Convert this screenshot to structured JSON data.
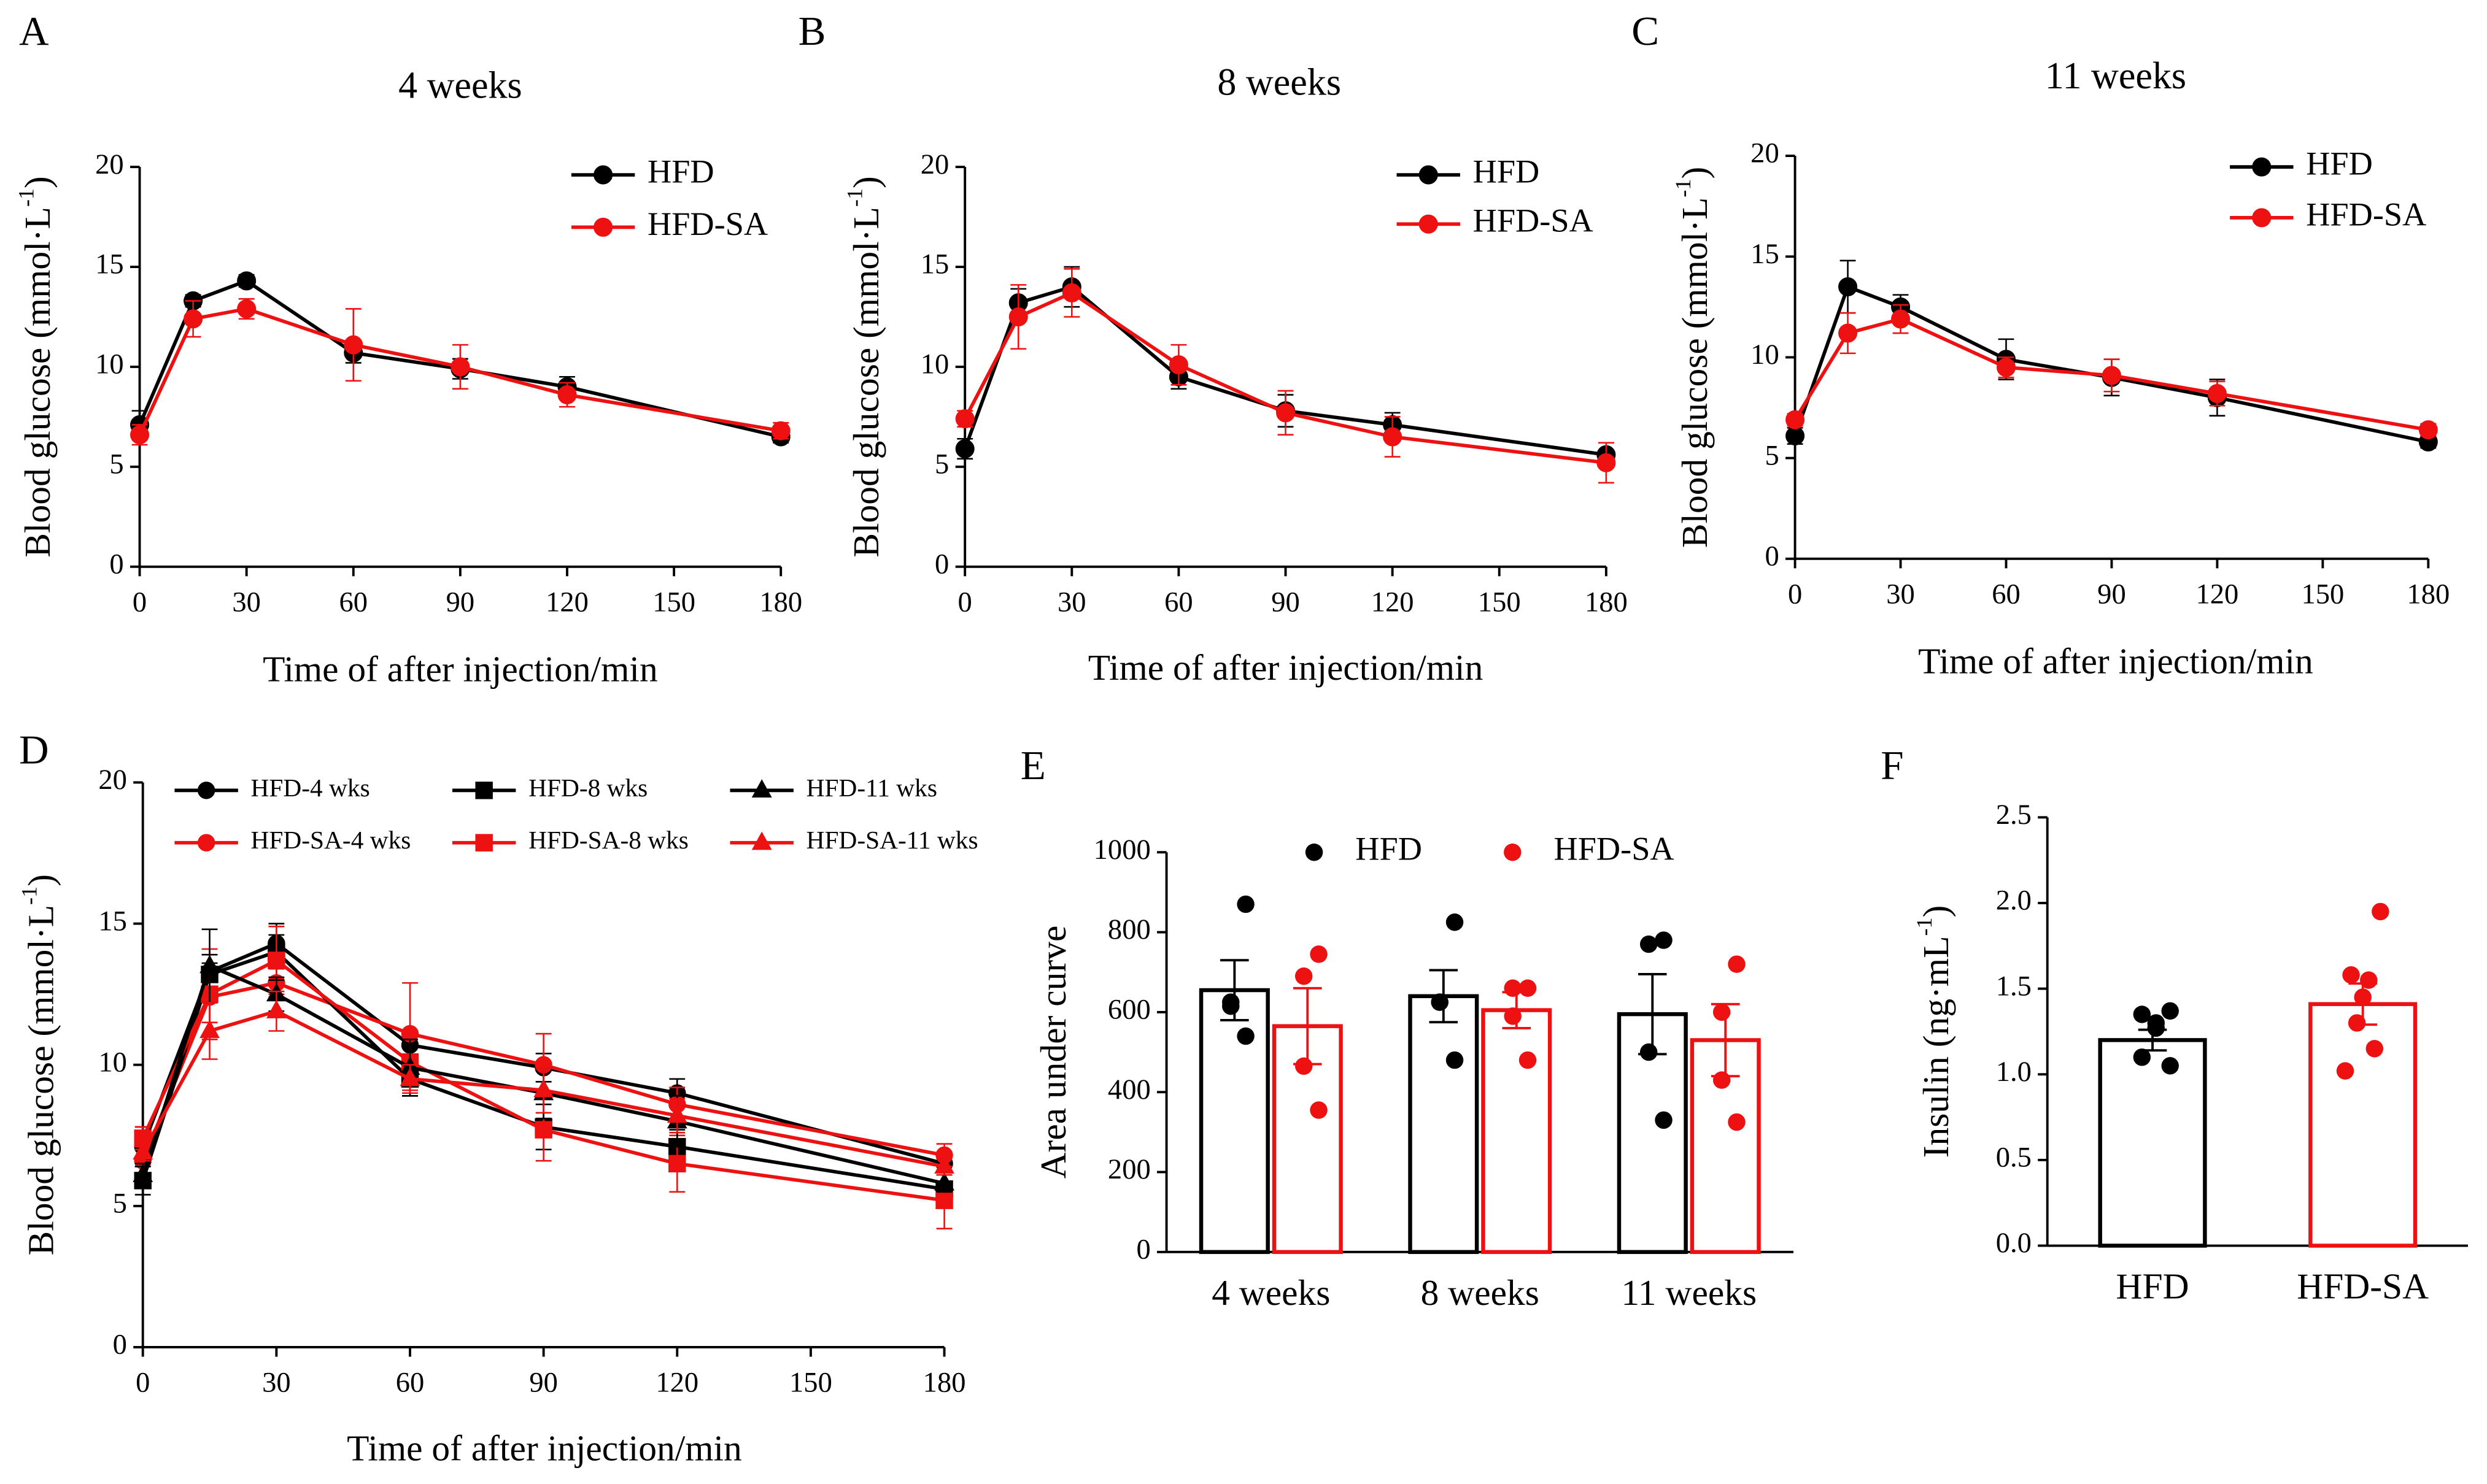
{
  "chart_data": [
    {
      "type": "line",
      "panel": "A",
      "title": "4 weeks",
      "xlabel": "Time of after injection/min",
      "ylabel": "Blood glucose (mmol·L",
      "ylabel_sup": "-1",
      "ylabel_end": ")",
      "x": [
        0,
        15,
        30,
        60,
        90,
        120,
        180
      ],
      "xlim": [
        0,
        180
      ],
      "xticks": [
        0,
        30,
        60,
        90,
        120,
        150,
        180
      ],
      "ylim": [
        0,
        20
      ],
      "yticks": [
        0,
        5,
        10,
        15,
        20
      ],
      "series": [
        {
          "name": "HFD",
          "color": "#000000",
          "marker": "circle",
          "values": [
            7.1,
            13.3,
            14.3,
            10.7,
            9.9,
            9.0,
            6.5
          ],
          "errors": [
            0.7,
            0.3,
            0.3,
            0.5,
            0.5,
            0.5,
            0.3
          ]
        },
        {
          "name": "HFD-SA",
          "color": "#ee1111",
          "marker": "circle",
          "values": [
            6.6,
            12.4,
            12.9,
            11.1,
            10.0,
            8.6,
            6.8
          ],
          "errors": [
            0.5,
            0.9,
            0.5,
            1.8,
            1.1,
            0.6,
            0.4
          ]
        }
      ]
    },
    {
      "type": "line",
      "panel": "B",
      "title": "8 weeks",
      "xlabel": "Time of after injection/min",
      "ylabel": "Blood glucose (mmol·L",
      "ylabel_sup": "-1",
      "ylabel_end": ")",
      "x": [
        0,
        15,
        30,
        60,
        90,
        120,
        180
      ],
      "xlim": [
        0,
        180
      ],
      "xticks": [
        0,
        30,
        60,
        90,
        120,
        150,
        180
      ],
      "ylim": [
        0,
        20
      ],
      "yticks": [
        0,
        5,
        10,
        15,
        20
      ],
      "series": [
        {
          "name": "HFD",
          "color": "#000000",
          "marker": "circle",
          "values": [
            5.9,
            13.2,
            14.0,
            9.5,
            7.8,
            7.1,
            5.6
          ],
          "errors": [
            0.5,
            0.7,
            1.0,
            0.6,
            0.8,
            0.6,
            0.6
          ]
        },
        {
          "name": "HFD-SA",
          "color": "#ee1111",
          "marker": "circle",
          "values": [
            7.4,
            12.5,
            13.7,
            10.1,
            7.7,
            6.5,
            5.2
          ],
          "errors": [
            0.4,
            1.6,
            1.2,
            1.0,
            1.1,
            1.0,
            1.0
          ]
        }
      ]
    },
    {
      "type": "line",
      "panel": "C",
      "title": "11 weeks",
      "xlabel": "Time of after injection/min",
      "ylabel": "Blood glucose (mmol·L",
      "ylabel_sup": "-1",
      "ylabel_end": ")",
      "x": [
        0,
        15,
        30,
        60,
        90,
        120,
        180
      ],
      "xlim": [
        0,
        180
      ],
      "xticks": [
        0,
        30,
        60,
        90,
        120,
        150,
        180
      ],
      "ylim": [
        0,
        20
      ],
      "yticks": [
        0,
        5,
        10,
        15,
        20
      ],
      "series": [
        {
          "name": "HFD",
          "color": "#000000",
          "marker": "circle",
          "values": [
            6.1,
            13.5,
            12.5,
            9.9,
            9.0,
            8.0,
            5.8
          ],
          "errors": [
            0.4,
            1.3,
            0.6,
            1.0,
            0.9,
            0.9,
            0.3
          ]
        },
        {
          "name": "HFD-SA",
          "color": "#ee1111",
          "marker": "circle",
          "values": [
            6.9,
            11.2,
            11.9,
            9.5,
            9.1,
            8.2,
            6.4
          ],
          "errors": [
            0.3,
            1.0,
            0.7,
            0.5,
            0.8,
            0.6,
            0.3
          ]
        }
      ]
    },
    {
      "type": "line",
      "panel": "D",
      "xlabel": "Time of after injection/min",
      "ylabel": "Blood glucose (mmol·L",
      "ylabel_sup": "-1",
      "ylabel_end": ")",
      "x": [
        0,
        15,
        30,
        60,
        90,
        120,
        180
      ],
      "xlim": [
        0,
        180
      ],
      "xticks": [
        0,
        30,
        60,
        90,
        120,
        150,
        180
      ],
      "ylim": [
        0,
        20
      ],
      "yticks": [
        0,
        5,
        10,
        15,
        20
      ],
      "series": [
        {
          "name": "HFD-4 wks",
          "color": "#000000",
          "marker": "circle",
          "values": [
            7.1,
            13.3,
            14.3,
            10.7,
            9.9,
            9.0,
            6.5
          ],
          "errors": [
            0.7,
            0.3,
            0.3,
            0.5,
            0.5,
            0.5,
            0.3
          ]
        },
        {
          "name": "HFD-SA-4 wks",
          "color": "#ee1111",
          "marker": "circle",
          "values": [
            6.6,
            12.4,
            12.9,
            11.1,
            10.0,
            8.6,
            6.8
          ],
          "errors": [
            0.5,
            0.9,
            0.5,
            1.8,
            1.1,
            0.6,
            0.4
          ]
        },
        {
          "name": "HFD-8 wks",
          "color": "#000000",
          "marker": "square",
          "values": [
            5.9,
            13.2,
            14.0,
            9.5,
            7.8,
            7.1,
            5.6
          ],
          "errors": [
            0.5,
            0.7,
            1.0,
            0.6,
            0.8,
            0.6,
            0.6
          ]
        },
        {
          "name": "HFD-SA-8 wks",
          "color": "#ee1111",
          "marker": "square",
          "values": [
            7.4,
            12.5,
            13.7,
            10.1,
            7.7,
            6.5,
            5.2
          ],
          "errors": [
            0.4,
            1.6,
            1.2,
            1.0,
            1.1,
            1.0,
            1.0
          ]
        },
        {
          "name": "HFD-11 wks",
          "color": "#000000",
          "marker": "triangle",
          "values": [
            6.1,
            13.5,
            12.5,
            9.9,
            9.0,
            8.0,
            5.8
          ],
          "errors": [
            0.4,
            1.3,
            0.6,
            1.0,
            0.9,
            0.9,
            0.3
          ]
        },
        {
          "name": "HFD-SA-11 wks",
          "color": "#ee1111",
          "marker": "triangle",
          "values": [
            6.9,
            11.2,
            11.9,
            9.5,
            9.1,
            8.2,
            6.4
          ],
          "errors": [
            0.3,
            1.0,
            0.7,
            0.5,
            0.8,
            0.6,
            0.3
          ]
        }
      ]
    },
    {
      "type": "bar",
      "panel": "E",
      "ylabel": "Area under curve",
      "categories": [
        "4 weeks",
        "8 weeks",
        "11 weeks"
      ],
      "ylim": [
        0,
        1000
      ],
      "yticks": [
        0,
        200,
        400,
        600,
        800,
        1000
      ],
      "series": [
        {
          "name": "HFD",
          "color": "#000000",
          "values": [
            655,
            640,
            595
          ],
          "errors": [
            75,
            65,
            100
          ],
          "points": [
            [
              870,
              615,
              625,
              540
            ],
            [
              825,
              625,
              625,
              480
            ],
            [
              780,
              770,
              500,
              330
            ]
          ]
        },
        {
          "name": "HFD-SA",
          "color": "#ee1111",
          "values": [
            565,
            605,
            530
          ],
          "errors": [
            95,
            45,
            90
          ],
          "points": [
            [
              745,
              690,
              465,
              355
            ],
            [
              660,
              660,
              590,
              480
            ],
            [
              720,
              600,
              430,
              325
            ]
          ]
        }
      ]
    },
    {
      "type": "bar",
      "panel": "F",
      "ylabel": "Insulin (ng·mL",
      "ylabel_sup": "-1",
      "ylabel_end": ")",
      "categories": [
        "HFD",
        "HFD-SA"
      ],
      "colors": [
        "#000000",
        "#ee1111"
      ],
      "ylim": [
        0,
        2.5
      ],
      "yticks": [
        {
          "value": 0,
          "label": "0.0"
        },
        0.5,
        {
          "value": 1,
          "label": "1.0"
        },
        1.5,
        {
          "value": 2,
          "label": "2.0"
        },
        2.5
      ],
      "values": [
        1.2,
        1.41
      ],
      "errors": [
        0.06,
        0.12
      ],
      "points": [
        [
          1.37,
          1.35,
          1.3,
          1.27,
          1.1,
          1.05
        ],
        [
          1.95,
          1.58,
          1.55,
          1.45,
          1.3,
          1.15,
          1.02
        ]
      ]
    }
  ]
}
